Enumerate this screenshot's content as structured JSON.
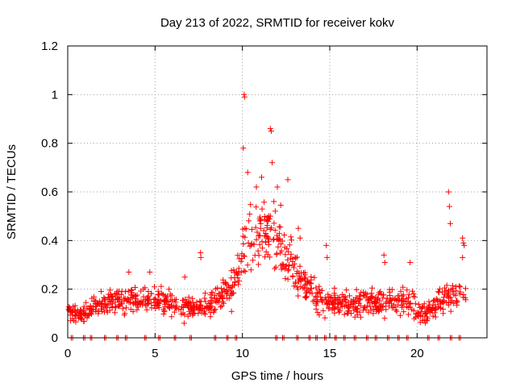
{
  "chart_data": {
    "type": "scatter",
    "title": "Day 213 of 2022, SRMTID for receiver kokv",
    "xlabel": "GPS time / hours",
    "ylabel": "SRMTID / TECUs",
    "xlim": [
      0,
      24
    ],
    "ylim": [
      0,
      1.2
    ],
    "xticks": [
      0,
      5,
      10,
      15,
      20
    ],
    "yticks": [
      0,
      0.2,
      0.4,
      0.6,
      0.8,
      1,
      1.2
    ],
    "xtick_labels": [
      "0",
      "5",
      "10",
      "15",
      "20"
    ],
    "ytick_labels": [
      "0",
      "0.2",
      "0.4",
      "0.6",
      "0.8",
      "1",
      "1.2"
    ],
    "grid": true,
    "marker": "+",
    "color": "#ff0000",
    "series": [
      {
        "name": "SRMTID",
        "x_range_hours": [
          0,
          22.8
        ],
        "points_per_hour": 45,
        "profile": [
          {
            "x": 0.0,
            "y": 0.1,
            "spread": 0.03
          },
          {
            "x": 1.0,
            "y": 0.1,
            "spread": 0.03
          },
          {
            "x": 1.8,
            "y": 0.14,
            "spread": 0.04
          },
          {
            "x": 3.0,
            "y": 0.16,
            "spread": 0.05
          },
          {
            "x": 4.5,
            "y": 0.16,
            "spread": 0.05
          },
          {
            "x": 6.0,
            "y": 0.14,
            "spread": 0.05
          },
          {
            "x": 7.5,
            "y": 0.12,
            "spread": 0.04
          },
          {
            "x": 8.5,
            "y": 0.15,
            "spread": 0.05
          },
          {
            "x": 9.5,
            "y": 0.22,
            "spread": 0.07
          },
          {
            "x": 10.2,
            "y": 0.4,
            "spread": 0.14
          },
          {
            "x": 11.0,
            "y": 0.42,
            "spread": 0.14
          },
          {
            "x": 11.8,
            "y": 0.45,
            "spread": 0.15
          },
          {
            "x": 12.5,
            "y": 0.32,
            "spread": 0.11
          },
          {
            "x": 13.5,
            "y": 0.22,
            "spread": 0.07
          },
          {
            "x": 14.5,
            "y": 0.15,
            "spread": 0.05
          },
          {
            "x": 16.0,
            "y": 0.14,
            "spread": 0.05
          },
          {
            "x": 18.0,
            "y": 0.16,
            "spread": 0.05
          },
          {
            "x": 19.5,
            "y": 0.15,
            "spread": 0.05
          },
          {
            "x": 20.2,
            "y": 0.1,
            "spread": 0.04
          },
          {
            "x": 21.5,
            "y": 0.16,
            "spread": 0.05
          },
          {
            "x": 22.8,
            "y": 0.18,
            "spread": 0.06
          }
        ],
        "highlights": [
          {
            "x": 10.1,
            "y": 1.0
          },
          {
            "x": 10.12,
            "y": 0.99
          },
          {
            "x": 10.05,
            "y": 0.78
          },
          {
            "x": 11.6,
            "y": 0.86
          },
          {
            "x": 11.65,
            "y": 0.85
          },
          {
            "x": 11.7,
            "y": 0.72
          },
          {
            "x": 10.3,
            "y": 0.68
          },
          {
            "x": 11.1,
            "y": 0.66
          },
          {
            "x": 12.6,
            "y": 0.65
          },
          {
            "x": 10.8,
            "y": 0.62
          },
          {
            "x": 12.0,
            "y": 0.62
          },
          {
            "x": 21.8,
            "y": 0.6
          },
          {
            "x": 21.85,
            "y": 0.54
          },
          {
            "x": 21.9,
            "y": 0.47
          },
          {
            "x": 22.6,
            "y": 0.41
          },
          {
            "x": 22.65,
            "y": 0.39
          },
          {
            "x": 22.7,
            "y": 0.38
          },
          {
            "x": 22.6,
            "y": 0.33
          },
          {
            "x": 7.6,
            "y": 0.35
          },
          {
            "x": 7.62,
            "y": 0.33
          },
          {
            "x": 14.8,
            "y": 0.38
          },
          {
            "x": 14.85,
            "y": 0.33
          },
          {
            "x": 18.1,
            "y": 0.34
          },
          {
            "x": 18.15,
            "y": 0.31
          },
          {
            "x": 19.6,
            "y": 0.31
          },
          {
            "x": 3.5,
            "y": 0.27
          },
          {
            "x": 4.7,
            "y": 0.27
          },
          {
            "x": 6.7,
            "y": 0.25
          },
          {
            "x": 13.2,
            "y": 0.45
          },
          {
            "x": 13.3,
            "y": 0.41
          }
        ],
        "zero_points_x": [
          0.2,
          0.9,
          1.3,
          2.1,
          2.8,
          3.3,
          4.4,
          5.2,
          6.1,
          7.0,
          8.4,
          9.1,
          9.6,
          11.9,
          12.3,
          13.1,
          13.8,
          14.2,
          14.7,
          15.3,
          15.8,
          16.4,
          17.1,
          17.6,
          18.3,
          18.9,
          19.4,
          20.6,
          21.2,
          21.9,
          22.4
        ]
      }
    ]
  }
}
